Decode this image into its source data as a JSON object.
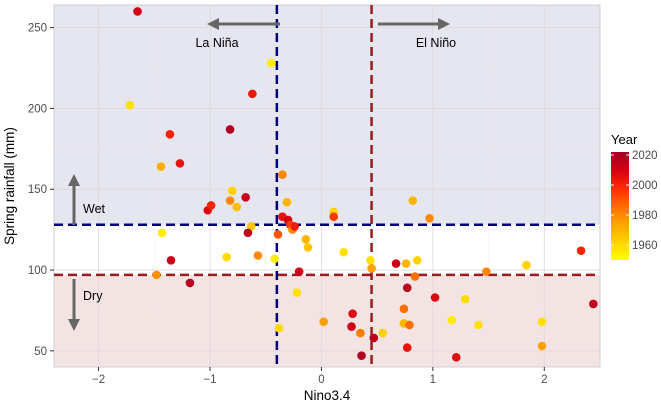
{
  "chart_data": {
    "type": "scatter",
    "xlabel": "Nino3.4",
    "ylabel": "Spring rainfall (mm)",
    "xlim": [
      -2.4,
      2.5
    ],
    "ylim": [
      40,
      264
    ],
    "x_ticks": [
      -2,
      -1,
      0,
      1,
      2
    ],
    "y_ticks": [
      50,
      100,
      150,
      200,
      250
    ],
    "x_tick_labels": [
      "−2",
      "−1",
      "0",
      "1",
      "2"
    ],
    "y_tick_labels": [
      "50",
      "100",
      "150",
      "200",
      "250"
    ],
    "grid": true,
    "thresholds": {
      "la_nina_x": -0.4,
      "el_nino_x": 0.45,
      "wet_y": 128,
      "dry_y": 97
    },
    "annotations": {
      "la_nina": "La Niña",
      "el_nino": "El Niño",
      "wet": "Wet",
      "dry": "Dry"
    },
    "legend": {
      "title": "Year",
      "position": "right",
      "ticks": [
        1960,
        1980,
        2000,
        2020
      ],
      "tick_labels": [
        "1960",
        "1980",
        "2000",
        "2020"
      ],
      "range": [
        1950,
        2022
      ],
      "colors": [
        "#ffff00",
        "#ffd200",
        "#ffa500",
        "#ff6a00",
        "#ff2a00",
        "#d40014",
        "#a50026"
      ]
    },
    "band_colors": {
      "wet": "#e6e6f1",
      "dry": "#f4e3e3",
      "la_nina_line": "#00007d",
      "el_nino_line": "#9b1c1c",
      "arrow": "#666666"
    },
    "points": [
      {
        "x": -1.65,
        "y": 260,
        "year": 2010
      },
      {
        "x": -1.72,
        "y": 202,
        "year": 1958
      },
      {
        "x": -1.36,
        "y": 184,
        "year": 2000
      },
      {
        "x": -1.27,
        "y": 166,
        "year": 2005
      },
      {
        "x": -1.44,
        "y": 164,
        "year": 1972
      },
      {
        "x": -1.43,
        "y": 123,
        "year": 1955
      },
      {
        "x": -1.35,
        "y": 106,
        "year": 2012
      },
      {
        "x": -1.18,
        "y": 92,
        "year": 2018
      },
      {
        "x": -1.48,
        "y": 97,
        "year": 1978
      },
      {
        "x": -0.82,
        "y": 187,
        "year": 2020
      },
      {
        "x": -0.62,
        "y": 209,
        "year": 2003
      },
      {
        "x": -0.45,
        "y": 228,
        "year": 1955
      },
      {
        "x": -1.02,
        "y": 137,
        "year": 2008
      },
      {
        "x": -0.99,
        "y": 140,
        "year": 2000
      },
      {
        "x": -0.8,
        "y": 149,
        "year": 1962
      },
      {
        "x": -0.82,
        "y": 143,
        "year": 1980
      },
      {
        "x": -0.76,
        "y": 139,
        "year": 1968
      },
      {
        "x": -0.68,
        "y": 145,
        "year": 2013
      },
      {
        "x": -0.63,
        "y": 127,
        "year": 1966
      },
      {
        "x": -0.66,
        "y": 123,
        "year": 2015
      },
      {
        "x": -0.85,
        "y": 108,
        "year": 1960
      },
      {
        "x": -0.57,
        "y": 109,
        "year": 1980
      },
      {
        "x": -0.42,
        "y": 107,
        "year": 1955
      },
      {
        "x": -0.39,
        "y": 122,
        "year": 1990
      },
      {
        "x": -0.35,
        "y": 133,
        "year": 2005
      },
      {
        "x": -0.3,
        "y": 131,
        "year": 2010
      },
      {
        "x": -0.28,
        "y": 128,
        "year": 1995
      },
      {
        "x": -0.26,
        "y": 125,
        "year": 1980
      },
      {
        "x": -0.24,
        "y": 127,
        "year": 2002
      },
      {
        "x": -0.31,
        "y": 142,
        "year": 1970
      },
      {
        "x": -0.35,
        "y": 159,
        "year": 1980
      },
      {
        "x": -0.14,
        "y": 119,
        "year": 1970
      },
      {
        "x": -0.12,
        "y": 114,
        "year": 1965
      },
      {
        "x": -0.2,
        "y": 99,
        "year": 2012
      },
      {
        "x": -0.22,
        "y": 86,
        "year": 1958
      },
      {
        "x": -0.38,
        "y": 64,
        "year": 1960
      },
      {
        "x": 0.11,
        "y": 136,
        "year": 1962
      },
      {
        "x": 0.11,
        "y": 133,
        "year": 1995
      },
      {
        "x": 0.2,
        "y": 111,
        "year": 1958
      },
      {
        "x": 0.02,
        "y": 68,
        "year": 1975
      },
      {
        "x": 0.28,
        "y": 73,
        "year": 2008
      },
      {
        "x": 0.27,
        "y": 65,
        "year": 2012
      },
      {
        "x": 0.35,
        "y": 61,
        "year": 1982
      },
      {
        "x": 0.36,
        "y": 47,
        "year": 2020
      },
      {
        "x": 0.47,
        "y": 58,
        "year": 2016
      },
      {
        "x": 0.44,
        "y": 106,
        "year": 1958
      },
      {
        "x": 0.45,
        "y": 101,
        "year": 1975
      },
      {
        "x": 0.55,
        "y": 61,
        "year": 1962
      },
      {
        "x": 0.82,
        "y": 143,
        "year": 1970
      },
      {
        "x": 0.97,
        "y": 132,
        "year": 1980
      },
      {
        "x": 0.67,
        "y": 104,
        "year": 2012
      },
      {
        "x": 0.76,
        "y": 104,
        "year": 1970
      },
      {
        "x": 0.86,
        "y": 106,
        "year": 1962
      },
      {
        "x": 0.84,
        "y": 96,
        "year": 1985
      },
      {
        "x": 0.77,
        "y": 89,
        "year": 2018
      },
      {
        "x": 0.74,
        "y": 76,
        "year": 1985
      },
      {
        "x": 0.74,
        "y": 67,
        "year": 1970
      },
      {
        "x": 0.79,
        "y": 66,
        "year": 1985
      },
      {
        "x": 0.77,
        "y": 52,
        "year": 2005
      },
      {
        "x": 1.02,
        "y": 83,
        "year": 2008
      },
      {
        "x": 1.17,
        "y": 69,
        "year": 1955
      },
      {
        "x": 1.21,
        "y": 46,
        "year": 2006
      },
      {
        "x": 1.29,
        "y": 82,
        "year": 1960
      },
      {
        "x": 1.41,
        "y": 66,
        "year": 1958
      },
      {
        "x": 1.48,
        "y": 99,
        "year": 1980
      },
      {
        "x": 1.84,
        "y": 103,
        "year": 1962
      },
      {
        "x": 1.98,
        "y": 68,
        "year": 1958
      },
      {
        "x": 1.98,
        "y": 53,
        "year": 1975
      },
      {
        "x": 2.33,
        "y": 112,
        "year": 2000
      },
      {
        "x": 2.44,
        "y": 79,
        "year": 2015
      }
    ]
  }
}
